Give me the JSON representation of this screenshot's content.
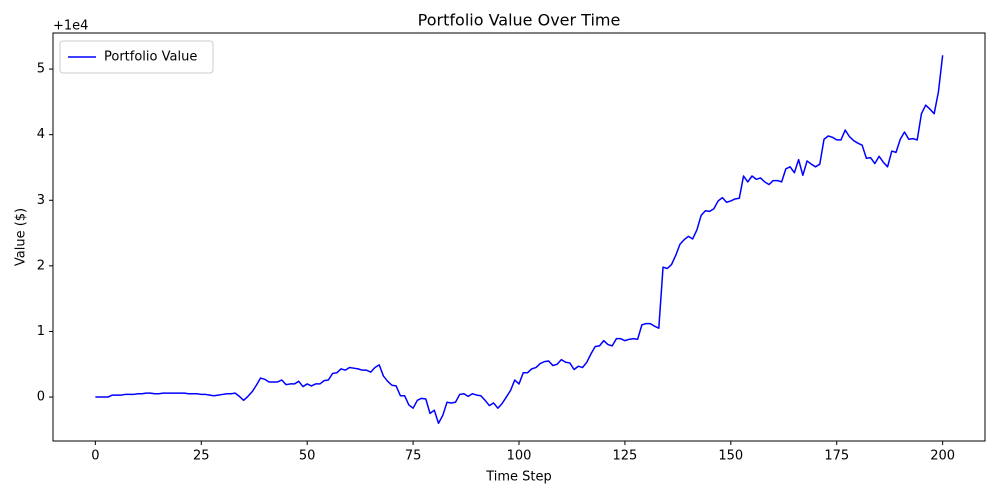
{
  "chart_data": {
    "type": "line",
    "title": "Portfolio Value Over Time",
    "x_label": "Time Step",
    "y_label": "Value ($)",
    "y_offset_text": "+1e4",
    "x": [
      0,
      1,
      2,
      3,
      4,
      5,
      6,
      7,
      8,
      9,
      10,
      11,
      12,
      13,
      14,
      15,
      16,
      17,
      18,
      19,
      20,
      21,
      22,
      23,
      24,
      25,
      26,
      27,
      28,
      29,
      30,
      31,
      32,
      33,
      34,
      35,
      36,
      37,
      38,
      39,
      40,
      41,
      42,
      43,
      44,
      45,
      46,
      47,
      48,
      49,
      50,
      51,
      52,
      53,
      54,
      55,
      56,
      57,
      58,
      59,
      60,
      61,
      62,
      63,
      64,
      65,
      66,
      67,
      68,
      69,
      70,
      71,
      72,
      73,
      74,
      75,
      76,
      77,
      78,
      79,
      80,
      81,
      82,
      83,
      84,
      85,
      86,
      87,
      88,
      89,
      90,
      91,
      92,
      93,
      94,
      95,
      96,
      97,
      98,
      99,
      100,
      101,
      102,
      103,
      104,
      105,
      106,
      107,
      108,
      109,
      110,
      111,
      112,
      113,
      114,
      115,
      116,
      117,
      118,
      119,
      120,
      121,
      122,
      123,
      124,
      125,
      126,
      127,
      128,
      129,
      130,
      131,
      132,
      133,
      134,
      135,
      136,
      137,
      138,
      139,
      140,
      141,
      142,
      143,
      144,
      145,
      146,
      147,
      148,
      149,
      150,
      151,
      152,
      153,
      154,
      155,
      156,
      157,
      158,
      159,
      160,
      161,
      162,
      163,
      164,
      165,
      166,
      167,
      168,
      169,
      170,
      171,
      172,
      173,
      174,
      175,
      176,
      177,
      178,
      179,
      180,
      181,
      182,
      183,
      184,
      185,
      186,
      187,
      188,
      189,
      190,
      191,
      192,
      193,
      194,
      195,
      196,
      197,
      198,
      199,
      200
    ],
    "series": [
      {
        "name": "Portfolio Value",
        "color": "#0000ff",
        "values": [
          0,
          0,
          0,
          0,
          0.03,
          0.03,
          0.03,
          0.04,
          0.04,
          0.04,
          0.05,
          0.05,
          0.06,
          0.06,
          0.05,
          0.05,
          0.06,
          0.06,
          0.06,
          0.06,
          0.06,
          0.06,
          0.05,
          0.05,
          0.05,
          0.04,
          0.04,
          0.03,
          0.02,
          0.03,
          0.04,
          0.05,
          0.05,
          0.06,
          0.01,
          -0.05,
          0.01,
          0.08,
          0.18,
          0.29,
          0.27,
          0.23,
          0.23,
          0.23,
          0.26,
          0.19,
          0.2,
          0.2,
          0.24,
          0.16,
          0.2,
          0.17,
          0.2,
          0.2,
          0.25,
          0.26,
          0.36,
          0.37,
          0.43,
          0.41,
          0.45,
          0.44,
          0.43,
          0.41,
          0.41,
          0.38,
          0.45,
          0.49,
          0.32,
          0.24,
          0.18,
          0.17,
          0.02,
          0.02,
          -0.12,
          -0.17,
          -0.05,
          -0.02,
          -0.03,
          -0.25,
          -0.2,
          -0.4,
          -0.28,
          -0.08,
          -0.09,
          -0.08,
          0.04,
          0.05,
          0.01,
          0.05,
          0.03,
          0.02,
          -0.05,
          -0.13,
          -0.09,
          -0.17,
          -0.1,
          0,
          0.1,
          0.26,
          0.2,
          0.37,
          0.37,
          0.43,
          0.45,
          0.51,
          0.54,
          0.55,
          0.48,
          0.5,
          0.57,
          0.53,
          0.52,
          0.42,
          0.47,
          0.45,
          0.53,
          0.66,
          0.77,
          0.78,
          0.86,
          0.8,
          0.78,
          0.89,
          0.89,
          0.86,
          0.88,
          0.89,
          0.88,
          1.1,
          1.12,
          1.12,
          1.08,
          1.05,
          1.98,
          1.96,
          2.02,
          2.16,
          2.33,
          2.4,
          2.45,
          2.41,
          2.55,
          2.77,
          2.84,
          2.83,
          2.87,
          2.99,
          3.04,
          2.97,
          2.99,
          3.02,
          3.03,
          3.37,
          3.28,
          3.37,
          3.32,
          3.34,
          3.28,
          3.24,
          3.3,
          3.3,
          3.28,
          3.48,
          3.51,
          3.42,
          3.62,
          3.38,
          3.6,
          3.55,
          3.51,
          3.55,
          3.93,
          3.98,
          3.96,
          3.92,
          3.92,
          4.07,
          3.97,
          3.91,
          3.87,
          3.84,
          3.64,
          3.65,
          3.56,
          3.67,
          3.58,
          3.51,
          3.75,
          3.73,
          3.93,
          4.04,
          3.93,
          3.94,
          3.92,
          4.32,
          4.45,
          4.39,
          4.32,
          4.65,
          5.21
        ]
      }
    ],
    "xlim": [
      -10,
      210
    ],
    "ylim": [
      -0.67,
      5.55
    ],
    "xticks": [
      0,
      25,
      50,
      75,
      100,
      125,
      150,
      175,
      200
    ],
    "yticks": [
      0,
      1,
      2,
      3,
      4,
      5
    ],
    "legend": "upper left"
  }
}
